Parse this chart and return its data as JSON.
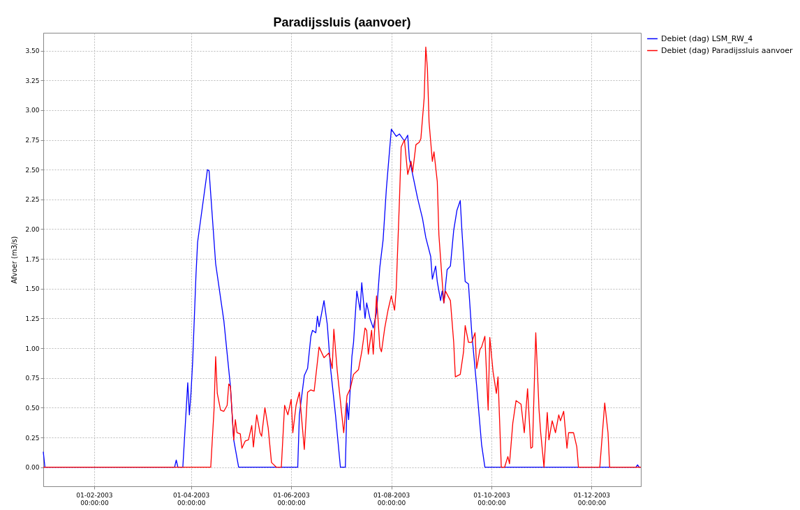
{
  "chart_data": {
    "type": "line",
    "title": "Paradijssluis (aanvoer)",
    "ylabel": "Afvoer (m3/s)",
    "xlim": [
      "2003-01-01",
      "2003-12-31"
    ],
    "xticks": [
      {
        "value": "2003-02-01",
        "label": "01-02-2003\n00:00:00"
      },
      {
        "value": "2003-04-01",
        "label": "01-04-2003\n00:00:00"
      },
      {
        "value": "2003-06-01",
        "label": "01-06-2003\n00:00:00"
      },
      {
        "value": "2003-08-01",
        "label": "01-08-2003\n00:00:00"
      },
      {
        "value": "2003-10-01",
        "label": "01-10-2003\n00:00:00"
      },
      {
        "value": "2003-12-01",
        "label": "01-12-2003\n00:00:00"
      }
    ],
    "ylim": [
      -0.16,
      3.65
    ],
    "yticks": [
      {
        "value": 0,
        "label": "0.00"
      },
      {
        "value": 0.25,
        "label": "0.25"
      },
      {
        "value": 0.5,
        "label": "0.50"
      },
      {
        "value": 0.75,
        "label": "0.75"
      },
      {
        "value": 1,
        "label": "1.00"
      },
      {
        "value": 1.25,
        "label": "1.25"
      },
      {
        "value": 1.5,
        "label": "1.50"
      },
      {
        "value": 1.75,
        "label": "1.75"
      },
      {
        "value": 2,
        "label": "2.00"
      },
      {
        "value": 2.25,
        "label": "2.25"
      },
      {
        "value": 2.5,
        "label": "2.50"
      },
      {
        "value": 2.75,
        "label": "2.75"
      },
      {
        "value": 3,
        "label": "3.00"
      },
      {
        "value": 3.25,
        "label": "3.25"
      },
      {
        "value": 3.5,
        "label": "3.50"
      }
    ],
    "grid": true,
    "legend": "top right",
    "line_style": "solid",
    "marker": "none",
    "series": [
      {
        "name": "Debiet (dag) LSM_RW_4",
        "color": "#0000ff",
        "x": [
          "2003-01-01",
          "2003-01-02",
          "2003-03-22",
          "2003-03-23",
          "2003-03-24",
          "2003-03-27",
          "2003-03-30",
          "2003-03-31",
          "2003-04-01",
          "2003-04-02",
          "2003-04-04",
          "2003-04-05",
          "2003-04-11",
          "2003-04-12",
          "2003-04-16",
          "2003-04-21",
          "2003-04-25",
          "2003-04-27",
          "2003-04-30",
          "2003-06-05",
          "2003-06-06",
          "2003-06-09",
          "2003-06-11",
          "2003-06-13",
          "2003-06-14",
          "2003-06-16",
          "2003-06-17",
          "2003-06-18",
          "2003-06-21",
          "2003-06-23",
          "2003-06-25",
          "2003-06-28",
          "2003-07-01",
          "2003-07-04",
          "2003-07-05",
          "2003-07-06",
          "2003-07-08",
          "2003-07-09",
          "2003-07-11",
          "2003-07-13",
          "2003-07-14",
          "2003-07-16",
          "2003-07-17",
          "2003-07-19",
          "2003-07-21",
          "2003-07-23",
          "2003-07-25",
          "2003-07-27",
          "2003-07-29",
          "2003-08-01",
          "2003-08-04",
          "2003-08-06",
          "2003-08-09",
          "2003-08-11",
          "2003-08-12",
          "2003-08-14",
          "2003-08-17",
          "2003-08-20",
          "2003-08-22",
          "2003-08-25",
          "2003-08-26",
          "2003-08-28",
          "2003-08-29",
          "2003-08-31",
          "2003-09-01",
          "2003-09-02",
          "2003-09-04",
          "2003-09-06",
          "2003-09-08",
          "2003-09-10",
          "2003-09-12",
          "2003-09-13",
          "2003-09-15",
          "2003-09-17",
          "2003-09-19",
          "2003-09-22",
          "2003-09-25",
          "2003-09-27",
          "2003-12-28",
          "2003-12-29",
          "2003-12-30",
          "2003-12-31"
        ],
        "values": [
          0.13,
          0,
          0,
          0.06,
          0,
          0,
          0.71,
          0.44,
          0.63,
          0.89,
          1.61,
          1.89,
          2.5,
          2.49,
          1.71,
          1.23,
          0.68,
          0.23,
          0,
          0,
          0.44,
          0.77,
          0.83,
          1.1,
          1.15,
          1.13,
          1.27,
          1.18,
          1.4,
          1.2,
          0.83,
          0.44,
          0,
          0,
          0.54,
          0.4,
          0.93,
          1.05,
          1.48,
          1.32,
          1.55,
          1.25,
          1.38,
          1.25,
          1.17,
          1.3,
          1.68,
          1.91,
          2.34,
          2.84,
          2.78,
          2.8,
          2.74,
          2.79,
          2.59,
          2.46,
          2.26,
          2.09,
          1.93,
          1.77,
          1.58,
          1.69,
          1.56,
          1.4,
          1.48,
          1.38,
          1.66,
          1.69,
          1.99,
          2.16,
          2.24,
          1.99,
          1.56,
          1.54,
          1.13,
          0.68,
          0.19,
          0,
          0,
          0.02,
          0,
          0
        ]
      },
      {
        "name": "Debiet (dag) Paradijssluis aanvoer",
        "color": "#ff0000",
        "x": [
          "2003-01-01",
          "2003-04-13",
          "2003-04-15",
          "2003-04-16",
          "2003-04-17",
          "2003-04-19",
          "2003-04-21",
          "2003-04-23",
          "2003-04-24",
          "2003-04-25",
          "2003-04-27",
          "2003-04-28",
          "2003-04-29",
          "2003-05-01",
          "2003-05-02",
          "2003-05-04",
          "2003-05-06",
          "2003-05-08",
          "2003-05-09",
          "2003-05-11",
          "2003-05-13",
          "2003-05-14",
          "2003-05-16",
          "2003-05-18",
          "2003-05-20",
          "2003-05-23",
          "2003-05-26",
          "2003-05-28",
          "2003-05-30",
          "2003-06-01",
          "2003-06-02",
          "2003-06-04",
          "2003-06-06",
          "2003-06-09",
          "2003-06-11",
          "2003-06-13",
          "2003-06-15",
          "2003-06-18",
          "2003-06-21",
          "2003-06-24",
          "2003-06-26",
          "2003-06-27",
          "2003-06-29",
          "2003-07-03",
          "2003-07-05",
          "2003-07-07",
          "2003-07-09",
          "2003-07-12",
          "2003-07-14",
          "2003-07-16",
          "2003-07-17",
          "2003-07-18",
          "2003-07-20",
          "2003-07-21",
          "2003-07-23",
          "2003-07-25",
          "2003-07-26",
          "2003-07-28",
          "2003-07-30",
          "2003-08-01",
          "2003-08-03",
          "2003-08-04",
          "2003-08-06",
          "2003-08-07",
          "2003-08-09",
          "2003-08-11",
          "2003-08-13",
          "2003-08-14",
          "2003-08-16",
          "2003-08-18",
          "2003-08-19",
          "2003-08-21",
          "2003-08-22",
          "2003-08-23",
          "2003-08-24",
          "2003-08-26",
          "2003-08-27",
          "2003-08-29",
          "2003-08-30",
          "2003-09-01",
          "2003-09-02",
          "2003-09-03",
          "2003-09-06",
          "2003-09-08",
          "2003-09-09",
          "2003-09-12",
          "2003-09-14",
          "2003-09-15",
          "2003-09-17",
          "2003-09-19",
          "2003-09-21",
          "2003-09-22",
          "2003-09-24",
          "2003-09-25",
          "2003-09-27",
          "2003-09-29",
          "2003-09-30",
          "2003-10-02",
          "2003-10-04",
          "2003-10-05",
          "2003-10-07",
          "2003-10-09",
          "2003-10-11",
          "2003-10-12",
          "2003-10-14",
          "2003-10-16",
          "2003-10-19",
          "2003-10-21",
          "2003-10-23",
          "2003-10-25",
          "2003-10-26",
          "2003-10-28",
          "2003-10-30",
          "2003-10-31",
          "2003-11-02",
          "2003-11-04",
          "2003-11-05",
          "2003-11-07",
          "2003-11-09",
          "2003-11-11",
          "2003-11-12",
          "2003-11-14",
          "2003-11-16",
          "2003-11-17",
          "2003-11-20",
          "2003-11-22",
          "2003-11-23",
          "2003-12-06",
          "2003-12-09",
          "2003-12-11",
          "2003-12-12",
          "2003-12-31"
        ],
        "values": [
          0,
          0,
          0.48,
          0.93,
          0.62,
          0.48,
          0.47,
          0.52,
          0.7,
          0.68,
          0.23,
          0.4,
          0.29,
          0.28,
          0.16,
          0.22,
          0.23,
          0.35,
          0.17,
          0.44,
          0.29,
          0.26,
          0.5,
          0.33,
          0.04,
          0,
          0,
          0.52,
          0.44,
          0.57,
          0.29,
          0.52,
          0.63,
          0.15,
          0.63,
          0.65,
          0.64,
          1.01,
          0.92,
          0.96,
          0.83,
          1.16,
          0.82,
          0.29,
          0.6,
          0.66,
          0.78,
          0.82,
          0.97,
          1.17,
          1.15,
          0.95,
          1.15,
          0.95,
          1.44,
          1.01,
          0.97,
          1.17,
          1.32,
          1.44,
          1.32,
          1.5,
          2.26,
          2.69,
          2.75,
          2.46,
          2.57,
          2.48,
          2.71,
          2.73,
          2.76,
          3.1,
          3.53,
          3.35,
          2.9,
          2.57,
          2.65,
          2.4,
          1.95,
          1.56,
          1.38,
          1.48,
          1.4,
          1.05,
          0.76,
          0.78,
          0.97,
          1.19,
          1.05,
          1.05,
          1.13,
          0.83,
          0.99,
          1.01,
          1.1,
          0.48,
          1.09,
          0.8,
          0.62,
          0.76,
          0,
          0,
          0.09,
          0.03,
          0.37,
          0.56,
          0.53,
          0.29,
          0.66,
          0.16,
          0.17,
          1.13,
          0.48,
          0.29,
          0,
          0.46,
          0.23,
          0.39,
          0.29,
          0.44,
          0.39,
          0.47,
          0.16,
          0.29,
          0.29,
          0.17,
          0,
          0,
          0.54,
          0.29,
          0,
          0
        ]
      }
    ]
  }
}
